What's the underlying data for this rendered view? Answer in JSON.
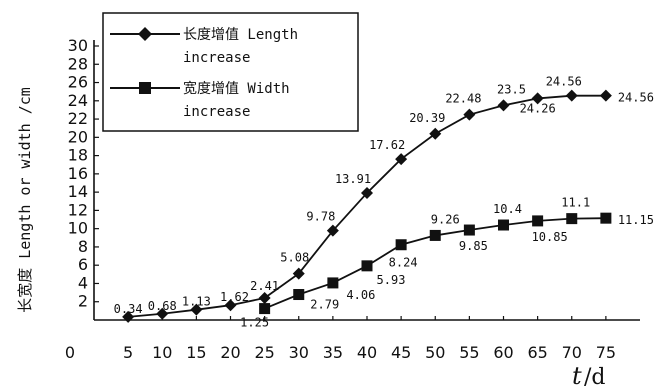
{
  "chart_data": {
    "type": "line",
    "ylabel": "长宽度 Length or width /cm",
    "xlabel_var": "t",
    "xlabel_unit": "/d",
    "x_ticks": [
      "0",
      "5",
      "10",
      "15",
      "20",
      "25",
      "30",
      "35",
      "40",
      "45",
      "50",
      "55",
      "60",
      "65",
      "70",
      "75"
    ],
    "y_ticks": [
      "2",
      "4",
      "6",
      "8",
      "10",
      "12",
      "14",
      "16",
      "18",
      "20",
      "22",
      "24",
      "26",
      "28",
      "30"
    ],
    "ylim": [
      0,
      30
    ],
    "xlim": [
      0,
      80
    ],
    "grid": false,
    "legend_position": "top-left",
    "series": [
      {
        "name": "长度增值 Length increase",
        "legend_line1": "长度增值 Length",
        "legend_line2": "increase",
        "marker": "diamond",
        "x": [
          5,
          10,
          15,
          20,
          25,
          30,
          35,
          40,
          45,
          50,
          55,
          60,
          65,
          70,
          75
        ],
        "values": [
          0.34,
          0.68,
          1.13,
          1.62,
          2.41,
          5.08,
          9.78,
          13.91,
          17.62,
          20.39,
          22.48,
          23.5,
          24.26,
          24.56,
          24.56
        ],
        "labels": [
          "0.34",
          "0.68",
          "1.13",
          "1.62",
          "2.41",
          "5.08",
          "9.78",
          "13.91",
          "17.62",
          "20.39",
          "22.48",
          "23.5",
          "24.26",
          "24.56",
          "24.56"
        ]
      },
      {
        "name": "宽度增值 Width increase",
        "legend_line1": "宽度增值 Width",
        "legend_line2": "increase",
        "marker": "square",
        "x": [
          25,
          30,
          35,
          40,
          45,
          50,
          55,
          60,
          65,
          70,
          75
        ],
        "values": [
          1.25,
          2.79,
          4.06,
          5.93,
          8.24,
          9.26,
          9.85,
          10.4,
          10.85,
          11.1,
          11.15
        ],
        "labels": [
          "1.25",
          "2.79",
          "4.06",
          "5.93",
          "8.24",
          "9.26",
          "9.85",
          "10.4",
          "10.85",
          "11.1",
          "11.15"
        ]
      }
    ]
  }
}
